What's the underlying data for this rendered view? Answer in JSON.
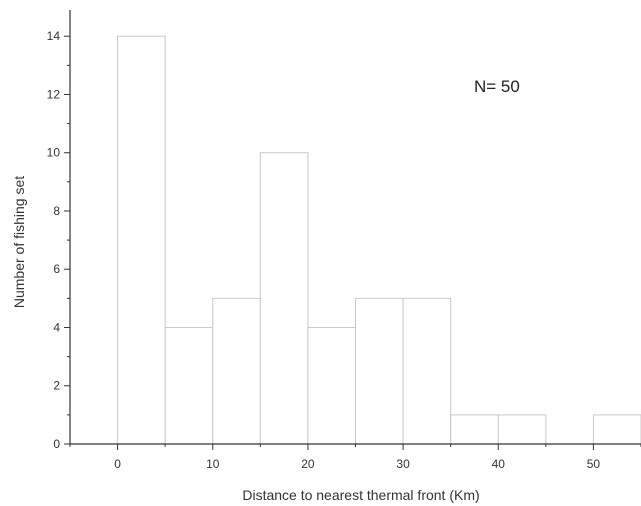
{
  "chart_data": {
    "type": "bar",
    "xlabel": "Distance to nearest thermal front (Km)",
    "ylabel": "Number of fishing set",
    "annotation": "N= 50",
    "bins": [
      {
        "start": 0,
        "end": 5,
        "count": 14
      },
      {
        "start": 5,
        "end": 10,
        "count": 4
      },
      {
        "start": 10,
        "end": 15,
        "count": 5
      },
      {
        "start": 15,
        "end": 20,
        "count": 10
      },
      {
        "start": 20,
        "end": 25,
        "count": 4
      },
      {
        "start": 25,
        "end": 30,
        "count": 5
      },
      {
        "start": 30,
        "end": 35,
        "count": 5
      },
      {
        "start": 35,
        "end": 40,
        "count": 1
      },
      {
        "start": 40,
        "end": 45,
        "count": 1
      },
      {
        "start": 45,
        "end": 50,
        "count": 0
      },
      {
        "start": 50,
        "end": 55,
        "count": 1
      }
    ],
    "xticks": [
      0,
      10,
      20,
      30,
      40,
      50
    ],
    "yticks": [
      0,
      2,
      4,
      6,
      8,
      10,
      12,
      14
    ],
    "xlim": [
      -5,
      55
    ],
    "ylim": [
      0,
      14.9
    ],
    "grid": false,
    "bar_color": "#ffffff",
    "bar_edge_color": "#c8c8c8",
    "axis_color": "#333333"
  }
}
